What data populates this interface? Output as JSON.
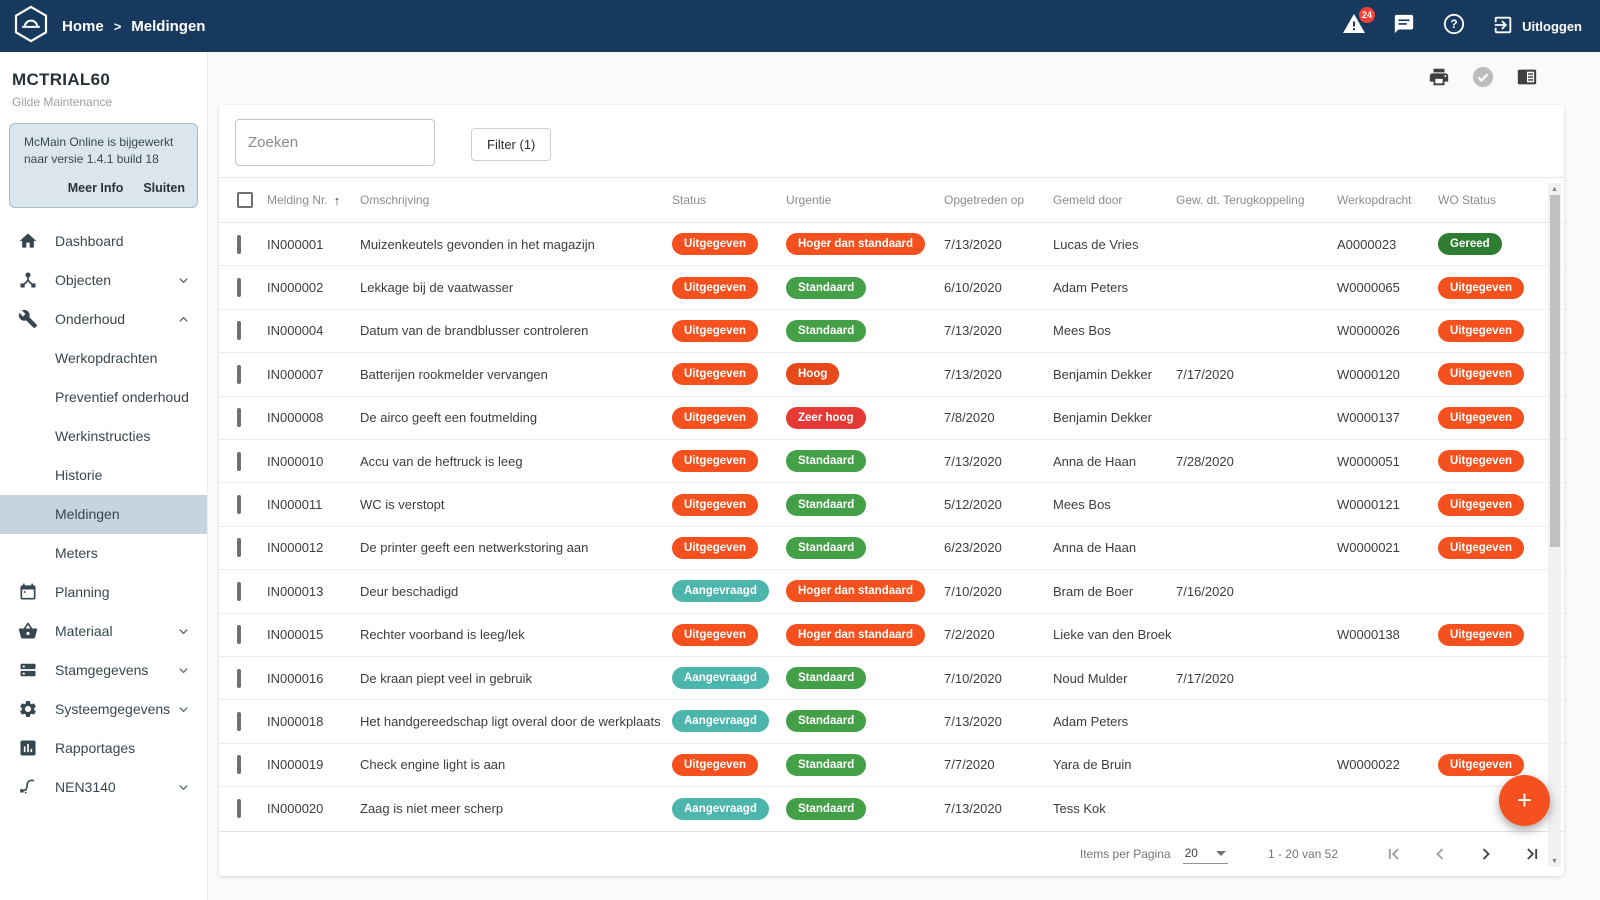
{
  "topbar": {
    "breadcrumb": {
      "home": "Home",
      "separator": ">",
      "current": "Meldingen"
    },
    "alert_count": "24",
    "logout_label": "Uitloggen"
  },
  "sidebar": {
    "title": "MCTRIAL60",
    "subtitle": "Gilde Maintenance",
    "notice": {
      "text": "McMain Online is bijgewerkt naar versie 1.4.1 build 18",
      "more_label": "Meer Info",
      "close_label": "Sluiten"
    },
    "items": [
      {
        "label": "Dashboard",
        "icon": "home-icon"
      },
      {
        "label": "Objecten",
        "icon": "objects-icon",
        "chevron": "down"
      },
      {
        "label": "Onderhoud",
        "icon": "wrench-icon",
        "chevron": "up"
      },
      {
        "label": "Werkopdrachten",
        "sub": true
      },
      {
        "label": "Preventief onderhoud",
        "sub": true
      },
      {
        "label": "Werkinstructies",
        "sub": true
      },
      {
        "label": "Historie",
        "sub": true
      },
      {
        "label": "Meldingen",
        "sub": true,
        "active": true
      },
      {
        "label": "Meters",
        "sub": true
      },
      {
        "label": "Planning",
        "icon": "calendar-icon"
      },
      {
        "label": "Materiaal",
        "icon": "basket-icon",
        "chevron": "down"
      },
      {
        "label": "Stamgegevens",
        "icon": "masterdata-icon",
        "chevron": "down"
      },
      {
        "label": "Systeemgegevens",
        "icon": "gear-icon",
        "chevron": "down"
      },
      {
        "label": "Rapportages",
        "icon": "report-icon"
      },
      {
        "label": "NEN3140",
        "icon": "plug-icon",
        "chevron": "down"
      }
    ]
  },
  "toolbar": {
    "search_placeholder": "Zoeken",
    "filter_label": "Filter (1)"
  },
  "table": {
    "columns": [
      "Melding Nr.",
      "Omschrijving",
      "Status",
      "Urgentie",
      "Opgetreden op",
      "Gemeld door",
      "Gew. dt. Terugkoppeling",
      "Werkopdracht",
      "WO Status"
    ],
    "sort_arrow": "↑",
    "rows": [
      {
        "nr": "IN000001",
        "desc": "Muizenkeutels gevonden in het magazijn",
        "status": "Uitgegeven",
        "urgency": "Hoger dan standaard",
        "occurred": "7/13/2020",
        "reporter": "Lucas de Vries",
        "feedback": "",
        "wo": "A0000023",
        "wo_status": "Gereed"
      },
      {
        "nr": "IN000002",
        "desc": "Lekkage bij de vaatwasser",
        "status": "Uitgegeven",
        "urgency": "Standaard",
        "occurred": "6/10/2020",
        "reporter": "Adam Peters",
        "feedback": "",
        "wo": "W0000065",
        "wo_status": "Uitgegeven"
      },
      {
        "nr": "IN000004",
        "desc": "Datum van de brandblusser controleren",
        "status": "Uitgegeven",
        "urgency": "Standaard",
        "occurred": "7/13/2020",
        "reporter": "Mees Bos",
        "feedback": "",
        "wo": "W0000026",
        "wo_status": "Uitgegeven"
      },
      {
        "nr": "IN000007",
        "desc": "Batterijen rookmelder vervangen",
        "status": "Uitgegeven",
        "urgency": "Hoog",
        "occurred": "7/13/2020",
        "reporter": "Benjamin Dekker",
        "feedback": "7/17/2020",
        "wo": "W0000120",
        "wo_status": "Uitgegeven"
      },
      {
        "nr": "IN000008",
        "desc": "De airco geeft een foutmelding",
        "status": "Uitgegeven",
        "urgency": "Zeer hoog",
        "occurred": "7/8/2020",
        "reporter": "Benjamin Dekker",
        "feedback": "",
        "wo": "W0000137",
        "wo_status": "Uitgegeven"
      },
      {
        "nr": "IN000010",
        "desc": "Accu van de heftruck is leeg",
        "status": "Uitgegeven",
        "urgency": "Standaard",
        "occurred": "7/13/2020",
        "reporter": "Anna de Haan",
        "feedback": "7/28/2020",
        "wo": "W0000051",
        "wo_status": "Uitgegeven"
      },
      {
        "nr": "IN000011",
        "desc": "WC is verstopt",
        "status": "Uitgegeven",
        "urgency": "Standaard",
        "occurred": "5/12/2020",
        "reporter": "Mees Bos",
        "feedback": "",
        "wo": "W0000121",
        "wo_status": "Uitgegeven"
      },
      {
        "nr": "IN000012",
        "desc": "De printer geeft een netwerkstoring aan",
        "status": "Uitgegeven",
        "urgency": "Standaard",
        "occurred": "6/23/2020",
        "reporter": "Anna de Haan",
        "feedback": "",
        "wo": "W0000021",
        "wo_status": "Uitgegeven"
      },
      {
        "nr": "IN000013",
        "desc": "Deur beschadigd",
        "status": "Aangevraagd",
        "urgency": "Hoger dan standaard",
        "occurred": "7/10/2020",
        "reporter": "Bram de Boer",
        "feedback": "7/16/2020",
        "wo": "",
        "wo_status": ""
      },
      {
        "nr": "IN000015",
        "desc": "Rechter voorband is leeg/lek",
        "status": "Uitgegeven",
        "urgency": "Hoger dan standaard",
        "occurred": "7/2/2020",
        "reporter": "Lieke van den Broek",
        "feedback": "",
        "wo": "W0000138",
        "wo_status": "Uitgegeven"
      },
      {
        "nr": "IN000016",
        "desc": "De kraan piept veel in gebruik",
        "status": "Aangevraagd",
        "urgency": "Standaard",
        "occurred": "7/10/2020",
        "reporter": "Noud Mulder",
        "feedback": "7/17/2020",
        "wo": "",
        "wo_status": ""
      },
      {
        "nr": "IN000018",
        "desc": "Het handgereedschap ligt overal door de werkplaats",
        "status": "Aangevraagd",
        "urgency": "Standaard",
        "occurred": "7/13/2020",
        "reporter": "Adam Peters",
        "feedback": "",
        "wo": "",
        "wo_status": ""
      },
      {
        "nr": "IN000019",
        "desc": "Check engine light is aan",
        "status": "Uitgegeven",
        "urgency": "Standaard",
        "occurred": "7/7/2020",
        "reporter": "Yara de Bruin",
        "feedback": "",
        "wo": "W0000022",
        "wo_status": "Uitgegeven"
      },
      {
        "nr": "IN000020",
        "desc": "Zaag is niet meer scherp",
        "status": "Aangevraagd",
        "urgency": "Standaard",
        "occurred": "7/13/2020",
        "reporter": "Tess Kok",
        "feedback": "",
        "wo": "",
        "wo_status": ""
      }
    ]
  },
  "badge_colors": {
    "Uitgegeven": "#f4511e",
    "Aangevraagd": "#4db6ac",
    "Standaard": "#43a047",
    "Hoog": "#e64a19",
    "Zeer hoog": "#e53935",
    "Hoger dan standaard": "#f4511e",
    "Gereed": "#2e7d32"
  },
  "pagination": {
    "items_per_page_label": "Items per Pagina",
    "items_per_page": "20",
    "range_label": "1 - 20 van 52"
  },
  "fab_label": "+"
}
